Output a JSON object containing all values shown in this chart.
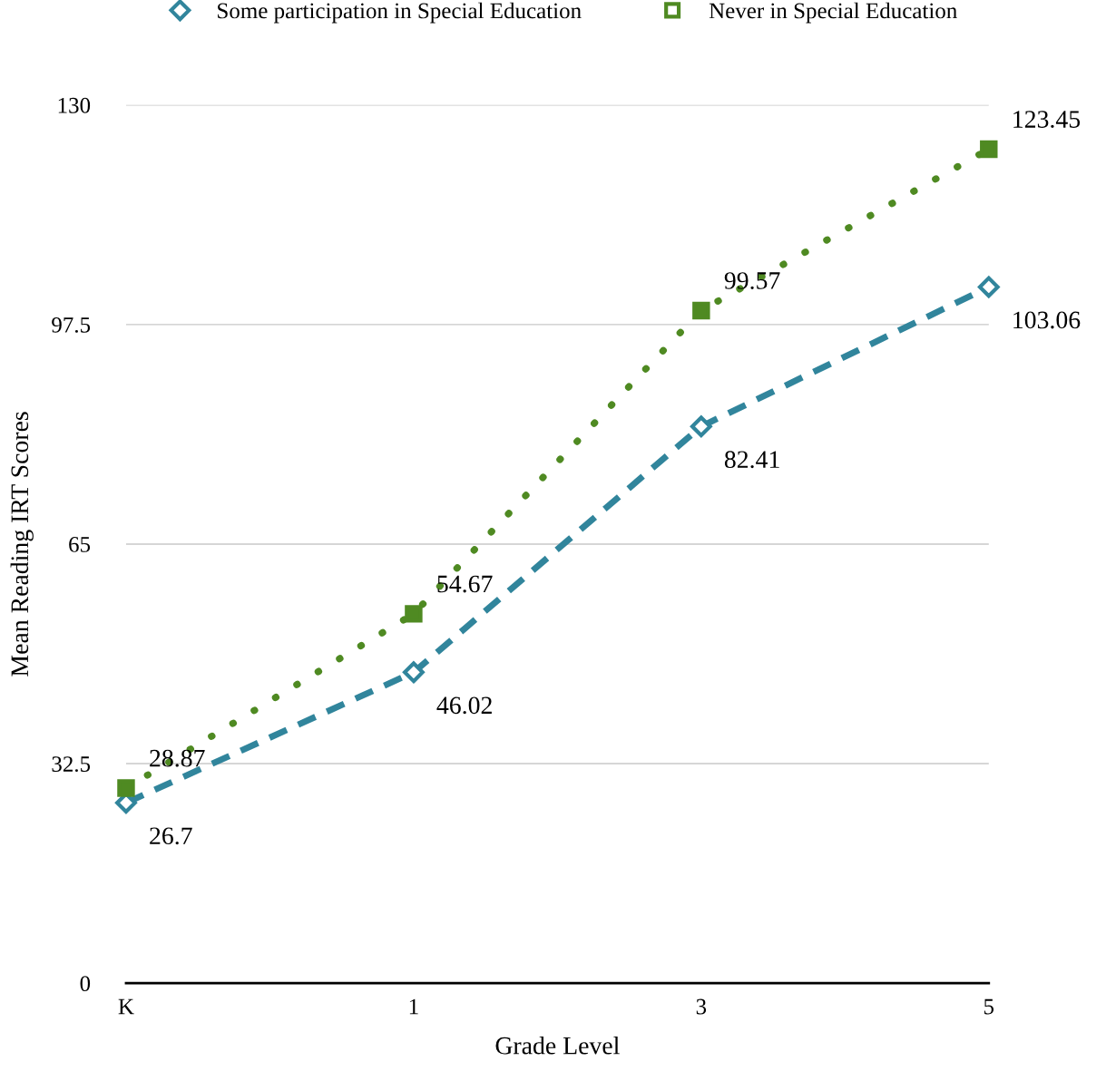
{
  "chart_data": {
    "type": "line",
    "xlabel": "Grade Level",
    "ylabel": "Mean Reading IRT Scores",
    "categories": [
      "K",
      "1",
      "3",
      "5"
    ],
    "series": [
      {
        "name": "Some participation in Special Education",
        "color": "#31859c",
        "values": [
          26.7,
          46.02,
          82.41,
          103.06
        ],
        "marker": "diamond",
        "line_style": "dashed"
      },
      {
        "name": "Never in Special Education",
        "color": "#4f8a22",
        "values": [
          28.87,
          54.67,
          99.57,
          123.45
        ],
        "marker": "square",
        "line_style": "dotted"
      }
    ],
    "ylim": [
      0,
      130
    ],
    "yticks": [
      0,
      32.5,
      65,
      97.5,
      130
    ],
    "grid": "y",
    "legend": "top",
    "data_labels": true
  }
}
